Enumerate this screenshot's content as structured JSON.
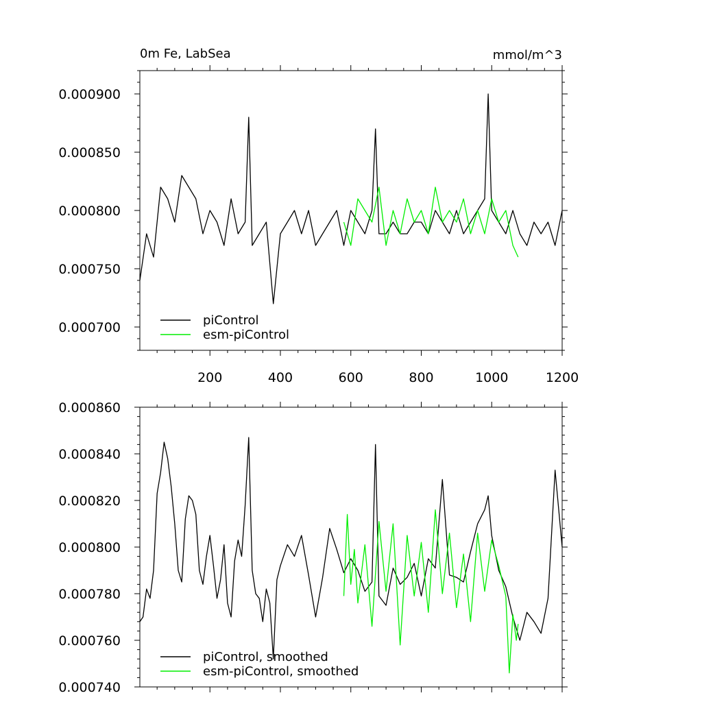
{
  "colors": {
    "picontrol": "#000000",
    "esm_picontrol": "#00ee00",
    "axis": "#000000",
    "background": "#ffffff"
  },
  "chart_data": [
    {
      "type": "line",
      "title_left": "0m Fe, LabSea",
      "title_right": "mmol/m^3",
      "xlabel": "",
      "ylabel": "",
      "xlim": [
        1,
        1200
      ],
      "ylim": [
        0.00068,
        0.00092
      ],
      "x_ticks": [
        200,
        400,
        600,
        800,
        1000,
        1200
      ],
      "x_tick_labels": [
        "200",
        "400",
        "600",
        "800",
        "1000",
        "1200"
      ],
      "y_ticks": [
        0.0007,
        0.00075,
        0.0008,
        0.00085,
        0.0009
      ],
      "y_tick_labels": [
        "0.000700",
        "0.000750",
        "0.000800",
        "0.000850",
        "0.000900"
      ],
      "grid": false,
      "legend_position": "bottom-left",
      "series": [
        {
          "name": "piControl",
          "color": "#000000",
          "x": [
            1,
            20,
            40,
            60,
            80,
            100,
            120,
            140,
            160,
            180,
            200,
            220,
            240,
            260,
            280,
            300,
            310,
            320,
            340,
            360,
            380,
            400,
            420,
            440,
            460,
            480,
            500,
            520,
            540,
            560,
            580,
            600,
            620,
            640,
            660,
            670,
            680,
            700,
            720,
            740,
            760,
            780,
            800,
            820,
            840,
            860,
            880,
            900,
            920,
            940,
            960,
            980,
            990,
            1000,
            1020,
            1040,
            1060,
            1080,
            1100,
            1120,
            1140,
            1160,
            1180,
            1200
          ],
          "y": [
            0.00074,
            0.00078,
            0.00076,
            0.00082,
            0.00081,
            0.00079,
            0.00083,
            0.00082,
            0.00081,
            0.00078,
            0.0008,
            0.00079,
            0.00077,
            0.00081,
            0.00078,
            0.00079,
            0.00088,
            0.00077,
            0.00078,
            0.00079,
            0.00072,
            0.00078,
            0.00079,
            0.0008,
            0.00078,
            0.0008,
            0.00077,
            0.00078,
            0.00079,
            0.0008,
            0.00077,
            0.0008,
            0.00079,
            0.00078,
            0.0008,
            0.00087,
            0.00078,
            0.00078,
            0.00079,
            0.00078,
            0.00078,
            0.00079,
            0.00079,
            0.00078,
            0.0008,
            0.00079,
            0.00078,
            0.0008,
            0.00078,
            0.00079,
            0.0008,
            0.00081,
            0.0009,
            0.0008,
            0.00079,
            0.00078,
            0.0008,
            0.00078,
            0.00077,
            0.00079,
            0.00078,
            0.00079,
            0.00077,
            0.0008
          ]
        },
        {
          "name": "esm-piControl",
          "color": "#00ee00",
          "x": [
            580,
            600,
            620,
            640,
            660,
            680,
            700,
            720,
            740,
            760,
            780,
            800,
            820,
            840,
            860,
            880,
            900,
            920,
            940,
            960,
            980,
            1000,
            1020,
            1040,
            1060,
            1075
          ],
          "y": [
            0.00079,
            0.00077,
            0.00081,
            0.0008,
            0.00079,
            0.00082,
            0.00077,
            0.0008,
            0.00078,
            0.00081,
            0.00079,
            0.0008,
            0.00078,
            0.00082,
            0.00079,
            0.0008,
            0.00079,
            0.00081,
            0.00078,
            0.0008,
            0.00078,
            0.00081,
            0.00079,
            0.0008,
            0.00077,
            0.00076
          ]
        }
      ]
    },
    {
      "type": "line",
      "title_left": "",
      "title_right": "",
      "xlabel": "",
      "ylabel": "",
      "xlim": [
        1,
        1200
      ],
      "ylim": [
        0.00074,
        0.00086
      ],
      "x_ticks": [
        200,
        400,
        600,
        800,
        1000,
        1200
      ],
      "x_tick_labels": [],
      "y_ticks": [
        0.00074,
        0.00076,
        0.00078,
        0.0008,
        0.00082,
        0.00084,
        0.00086
      ],
      "y_tick_labels": [
        "0.000740",
        "0.000760",
        "0.000780",
        "0.000800",
        "0.000820",
        "0.000840",
        "0.000860"
      ],
      "grid": false,
      "legend_position": "bottom-left",
      "series": [
        {
          "name": "piControl, smoothed",
          "color": "#000000",
          "x": [
            1,
            10,
            20,
            30,
            40,
            50,
            60,
            70,
            80,
            90,
            100,
            110,
            120,
            130,
            140,
            150,
            160,
            170,
            180,
            190,
            200,
            210,
            220,
            230,
            240,
            250,
            260,
            270,
            280,
            290,
            300,
            310,
            320,
            330,
            340,
            350,
            360,
            370,
            380,
            390,
            400,
            420,
            440,
            460,
            480,
            500,
            520,
            540,
            560,
            580,
            600,
            620,
            640,
            660,
            670,
            680,
            700,
            720,
            740,
            760,
            780,
            800,
            820,
            840,
            860,
            880,
            900,
            920,
            940,
            960,
            980,
            990,
            1000,
            1020,
            1040,
            1060,
            1080,
            1100,
            1120,
            1140,
            1160,
            1180,
            1200
          ],
          "y": [
            0.000768,
            0.00077,
            0.000782,
            0.000778,
            0.00079,
            0.000823,
            0.000832,
            0.000845,
            0.000838,
            0.000826,
            0.00081,
            0.00079,
            0.000785,
            0.000812,
            0.000822,
            0.00082,
            0.000814,
            0.00079,
            0.000784,
            0.000796,
            0.000805,
            0.000792,
            0.000778,
            0.000786,
            0.000801,
            0.000776,
            0.00077,
            0.000794,
            0.000803,
            0.000796,
            0.000818,
            0.000847,
            0.00079,
            0.00078,
            0.000778,
            0.000768,
            0.000782,
            0.000776,
            0.000752,
            0.000786,
            0.000792,
            0.000801,
            0.000796,
            0.000805,
            0.000788,
            0.00077,
            0.000787,
            0.000808,
            0.000799,
            0.000789,
            0.000795,
            0.00079,
            0.000781,
            0.000785,
            0.000844,
            0.000779,
            0.000775,
            0.000791,
            0.000784,
            0.000787,
            0.000793,
            0.000779,
            0.000795,
            0.000791,
            0.000829,
            0.000788,
            0.000787,
            0.000785,
            0.000798,
            0.00081,
            0.000816,
            0.000822,
            0.000805,
            0.00079,
            0.000783,
            0.00077,
            0.00076,
            0.000772,
            0.000768,
            0.000763,
            0.000778,
            0.000833,
            0.0008
          ]
        },
        {
          "name": "esm-piControl, smoothed",
          "color": "#00ee00",
          "x": [
            580,
            590,
            600,
            610,
            620,
            640,
            660,
            680,
            700,
            720,
            740,
            760,
            780,
            800,
            820,
            840,
            860,
            880,
            900,
            920,
            940,
            960,
            980,
            1000,
            1020,
            1040,
            1050,
            1060,
            1070,
            1075
          ],
          "y": [
            0.000779,
            0.000814,
            0.000784,
            0.000799,
            0.000776,
            0.000801,
            0.000766,
            0.000811,
            0.000781,
            0.00081,
            0.000758,
            0.000805,
            0.000779,
            0.000802,
            0.000772,
            0.000816,
            0.00078,
            0.000806,
            0.000774,
            0.000797,
            0.000768,
            0.000806,
            0.000781,
            0.000803,
            0.000792,
            0.000779,
            0.000746,
            0.000771,
            0.00076,
            0.000767
          ]
        }
      ]
    }
  ]
}
